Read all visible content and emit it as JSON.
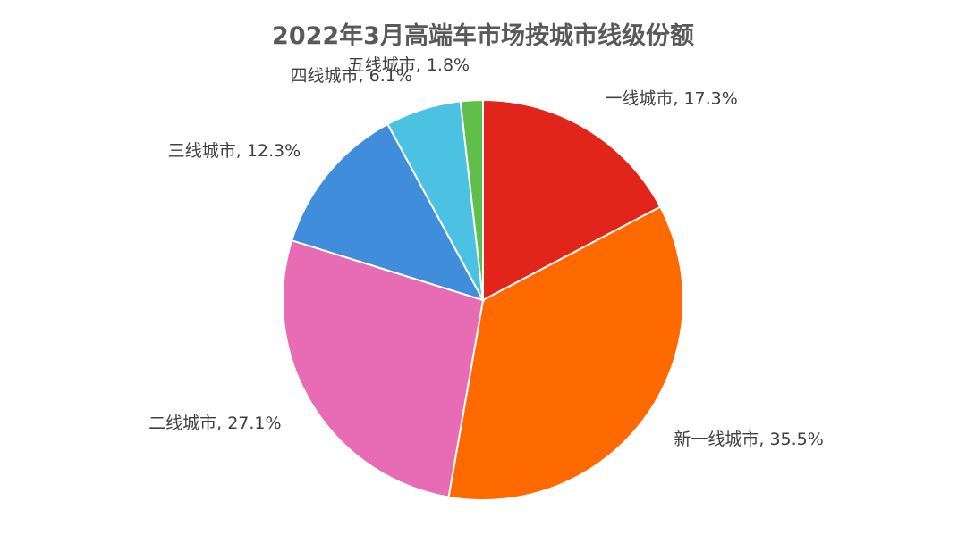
{
  "chart_data": {
    "type": "pie",
    "title": "2022年3月高端车市场按城市线级份额",
    "unit": "%",
    "slices": [
      {
        "label": "一线城市",
        "value": 17.3,
        "display": "17.3%",
        "color": "#e1251b"
      },
      {
        "label": "新一线城市",
        "value": 35.5,
        "display": "35.5%",
        "color": "#ff6a00"
      },
      {
        "label": "二线城市",
        "value": 27.1,
        "display": "27.1%",
        "color": "#e86cb4"
      },
      {
        "label": "三线城市",
        "value": 12.3,
        "display": "12.3%",
        "color": "#3f8ddb"
      },
      {
        "label": "四线城市",
        "value": 6.1,
        "display": "6.1%",
        "color": "#4cc2e2"
      },
      {
        "label": "五线城市",
        "value": 1.8,
        "display": "1.8%",
        "color": "#5fbf4a"
      }
    ],
    "start": "12 o'clock",
    "direction": "clockwise",
    "label_format": "{label}, {display}",
    "label_color": "#404040",
    "slice_border_color": "#ffffff"
  }
}
